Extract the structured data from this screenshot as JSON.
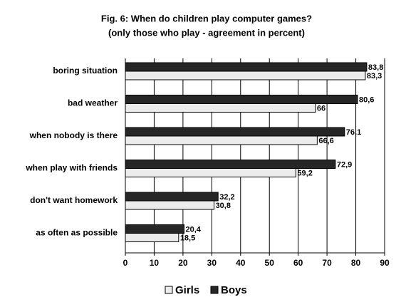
{
  "chart_data": {
    "type": "hbar",
    "title": "Fig. 6: When do children play computer games?",
    "subtitle": "(only those who play - agreement in percent)",
    "categories": [
      "boring situation",
      "bad weather",
      "when nobody is there",
      "when play with friends",
      "don't want homework",
      "as often as possible"
    ],
    "series": [
      {
        "name": "Boys",
        "color": "#262626",
        "values": [
          83.8,
          80.6,
          76.1,
          72.9,
          32.2,
          20.4
        ],
        "value_labels": [
          "83,8",
          "80,6",
          "76,1",
          "72,9",
          "32,2",
          "20,4"
        ]
      },
      {
        "name": "Girls",
        "color": "#ececec",
        "values": [
          83.3,
          66,
          66.6,
          59.2,
          30.8,
          18.5
        ],
        "value_labels": [
          "83,3",
          "66",
          "66,6",
          "59,2",
          "30,8",
          "18,5"
        ]
      }
    ],
    "xlim": [
      0,
      90
    ],
    "xticks": [
      0,
      10,
      20,
      30,
      40,
      50,
      60,
      70,
      80,
      90
    ],
    "grid": true
  }
}
